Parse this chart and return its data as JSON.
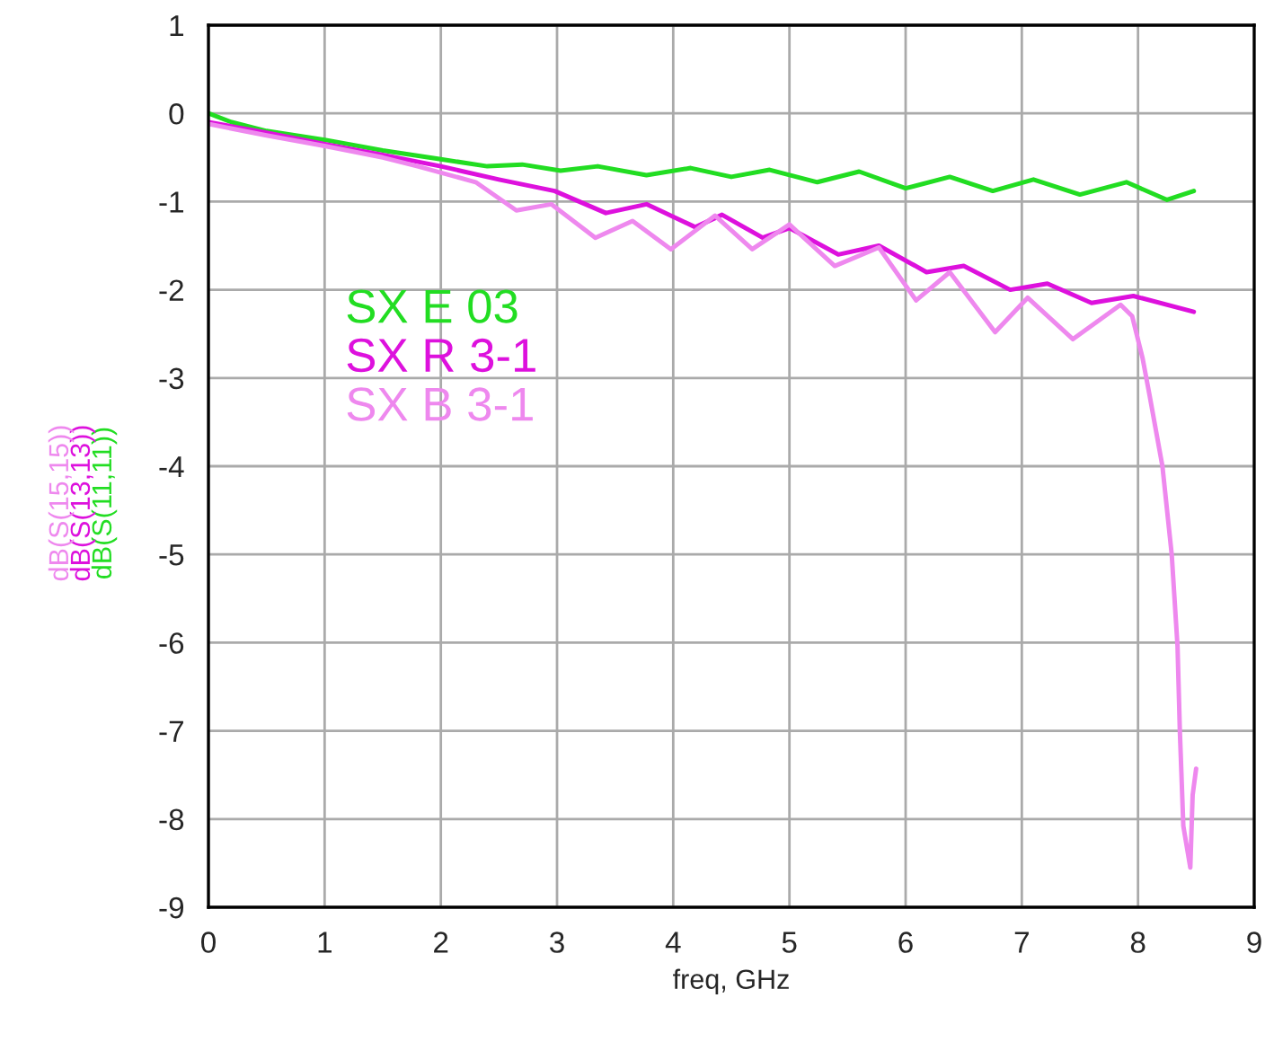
{
  "chart_data": {
    "type": "line",
    "xlabel": "freq, GHz",
    "ylabel": [
      "dB(S(11,11))",
      "dB(S(13,13))",
      "dB(S(15,15))"
    ],
    "xlim": [
      0,
      9
    ],
    "ylim": [
      -9,
      1
    ],
    "xticks": [
      0,
      1,
      2,
      3,
      4,
      5,
      6,
      7,
      8,
      9
    ],
    "yticks": [
      1,
      0,
      -1,
      -2,
      -3,
      -4,
      -5,
      -6,
      -7,
      -8,
      -9
    ],
    "grid": true,
    "legend": "upper left",
    "marker": "none",
    "line_style": "solid",
    "series": [
      {
        "name": "SX E 03",
        "color": "#22dd22",
        "x": [
          0,
          0.2,
          0.5,
          1,
          1.5,
          2.0,
          2.4,
          2.7,
          3.03,
          3.35,
          3.77,
          4.15,
          4.5,
          4.83,
          5.24,
          5.6,
          6.0,
          6.38,
          6.75,
          7.1,
          7.5,
          7.9,
          8.25,
          8.48
        ],
        "values": [
          0,
          -0.1,
          -0.2,
          -0.3,
          -0.42,
          -0.52,
          -0.6,
          -0.58,
          -0.65,
          -0.6,
          -0.7,
          -0.62,
          -0.72,
          -0.64,
          -0.78,
          -0.66,
          -0.85,
          -0.72,
          -0.88,
          -0.75,
          -0.92,
          -0.78,
          -0.98,
          -0.88
        ]
      },
      {
        "name": "SX R 3-1",
        "color": "#dd11dd",
        "x": [
          0,
          0.5,
          1,
          1.5,
          2,
          2.5,
          2.98,
          3.42,
          3.77,
          4.19,
          4.42,
          4.77,
          5.0,
          5.42,
          5.77,
          6.18,
          6.5,
          6.9,
          7.22,
          7.6,
          7.96,
          8.48
        ],
        "values": [
          -0.1,
          -0.22,
          -0.35,
          -0.47,
          -0.6,
          -0.75,
          -0.88,
          -1.13,
          -1.03,
          -1.29,
          -1.15,
          -1.41,
          -1.3,
          -1.6,
          -1.5,
          -1.8,
          -1.73,
          -2.0,
          -1.93,
          -2.15,
          -2.07,
          -2.25
        ]
      },
      {
        "name": "SX B 3-1",
        "color": "#ee88ee",
        "x": [
          0,
          0.5,
          1,
          1.5,
          1.8,
          2.3,
          2.65,
          2.95,
          3.33,
          3.65,
          3.98,
          4.36,
          4.68,
          5.0,
          5.39,
          5.77,
          6.09,
          6.38,
          6.77,
          7.05,
          7.44,
          7.85,
          7.95,
          8.04,
          8.1,
          8.21,
          8.29,
          8.34,
          8.36,
          8.39,
          8.45,
          8.47,
          8.5
        ],
        "values": [
          -0.12,
          -0.25,
          -0.37,
          -0.5,
          -0.6,
          -0.78,
          -1.1,
          -1.03,
          -1.41,
          -1.22,
          -1.54,
          -1.16,
          -1.54,
          -1.26,
          -1.73,
          -1.52,
          -2.12,
          -1.8,
          -2.48,
          -2.09,
          -2.56,
          -2.17,
          -2.3,
          -2.78,
          -3.2,
          -4.0,
          -5.0,
          -6.04,
          -7.0,
          -8.08,
          -8.55,
          -7.73,
          -7.43
        ]
      }
    ]
  }
}
